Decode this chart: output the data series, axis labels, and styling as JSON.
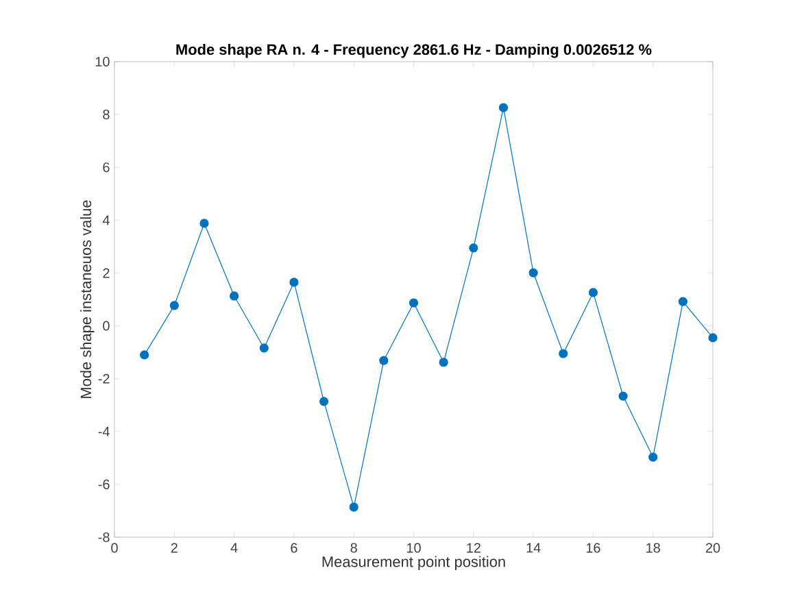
{
  "chart_data": {
    "type": "line",
    "title": "Mode shape RA n. 4 - Frequency 2861.6 Hz - Damping 0.0026512 %",
    "xlabel": "Measurement point position",
    "ylabel": "Mode shape instaneuos value",
    "x": [
      1,
      2,
      3,
      4,
      5,
      6,
      7,
      8,
      9,
      10,
      11,
      12,
      13,
      14,
      15,
      16,
      17,
      18,
      19,
      20
    ],
    "series": [
      {
        "color": "#0072bd",
        "values": [
          -1.1,
          0.77,
          3.88,
          1.13,
          -0.84,
          1.65,
          -2.86,
          -6.86,
          -1.31,
          0.87,
          -1.38,
          2.95,
          8.26,
          2.01,
          -1.05,
          1.26,
          -2.66,
          -4.97,
          0.92,
          -0.45
        ]
      }
    ],
    "xlim": [
      0,
      20
    ],
    "ylim": [
      -8,
      10
    ],
    "xticks": [
      0,
      2,
      4,
      6,
      8,
      10,
      12,
      14,
      16,
      18,
      20
    ],
    "yticks": [
      -8,
      -6,
      -4,
      -2,
      0,
      2,
      4,
      6,
      8,
      10
    ],
    "marker": "circle",
    "line_style": "solid"
  }
}
